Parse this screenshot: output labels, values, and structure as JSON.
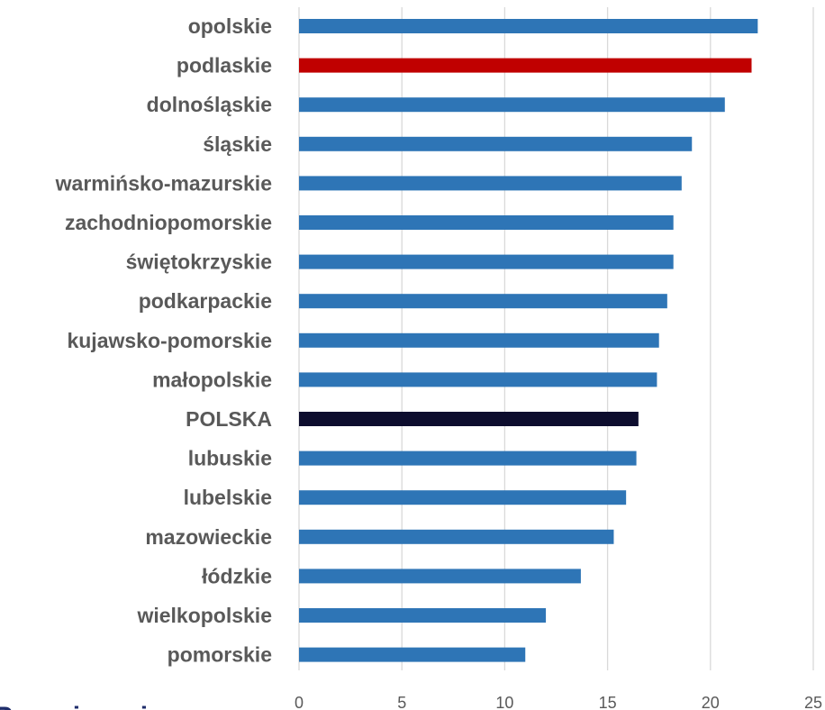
{
  "chart_data": {
    "type": "bar",
    "orientation": "horizontal",
    "categories": [
      "opolskie",
      "podlaskie",
      "dolnośląskie",
      "śląskie",
      "warmińsko-mazurskie",
      "zachodniopomorskie",
      "świętokrzyskie",
      "podkarpackie",
      "kujawsko-pomorskie",
      "małopolskie",
      "POLSKA",
      "lubuskie",
      "lubelskie",
      "mazowieckie",
      "łódzkie",
      "wielkopolskie",
      "pomorskie"
    ],
    "values": [
      22.3,
      22.0,
      20.7,
      19.1,
      18.6,
      18.2,
      18.2,
      17.9,
      17.5,
      17.4,
      16.5,
      16.4,
      15.9,
      15.3,
      13.7,
      12.0,
      11.0
    ],
    "bar_colors": [
      "#2e75b6",
      "#c00000",
      "#2e75b6",
      "#2e75b6",
      "#2e75b6",
      "#2e75b6",
      "#2e75b6",
      "#2e75b6",
      "#2e75b6",
      "#2e75b6",
      "#0d0d2e",
      "#2e75b6",
      "#2e75b6",
      "#2e75b6",
      "#2e75b6",
      "#2e75b6",
      "#2e75b6"
    ],
    "xlim": [
      0,
      25
    ],
    "xticks": [
      "0",
      "5",
      "10",
      "15",
      "20",
      "25"
    ],
    "grid": "vertical",
    "legend": "none",
    "title": "",
    "xlabel": "",
    "ylabel": ""
  },
  "colors": {
    "default_bar": "#2e75b6",
    "highlight_bar": "#c00000",
    "national_bar": "#0d0d2e",
    "label_text": "#595959",
    "grid": "#d9d9d9"
  }
}
